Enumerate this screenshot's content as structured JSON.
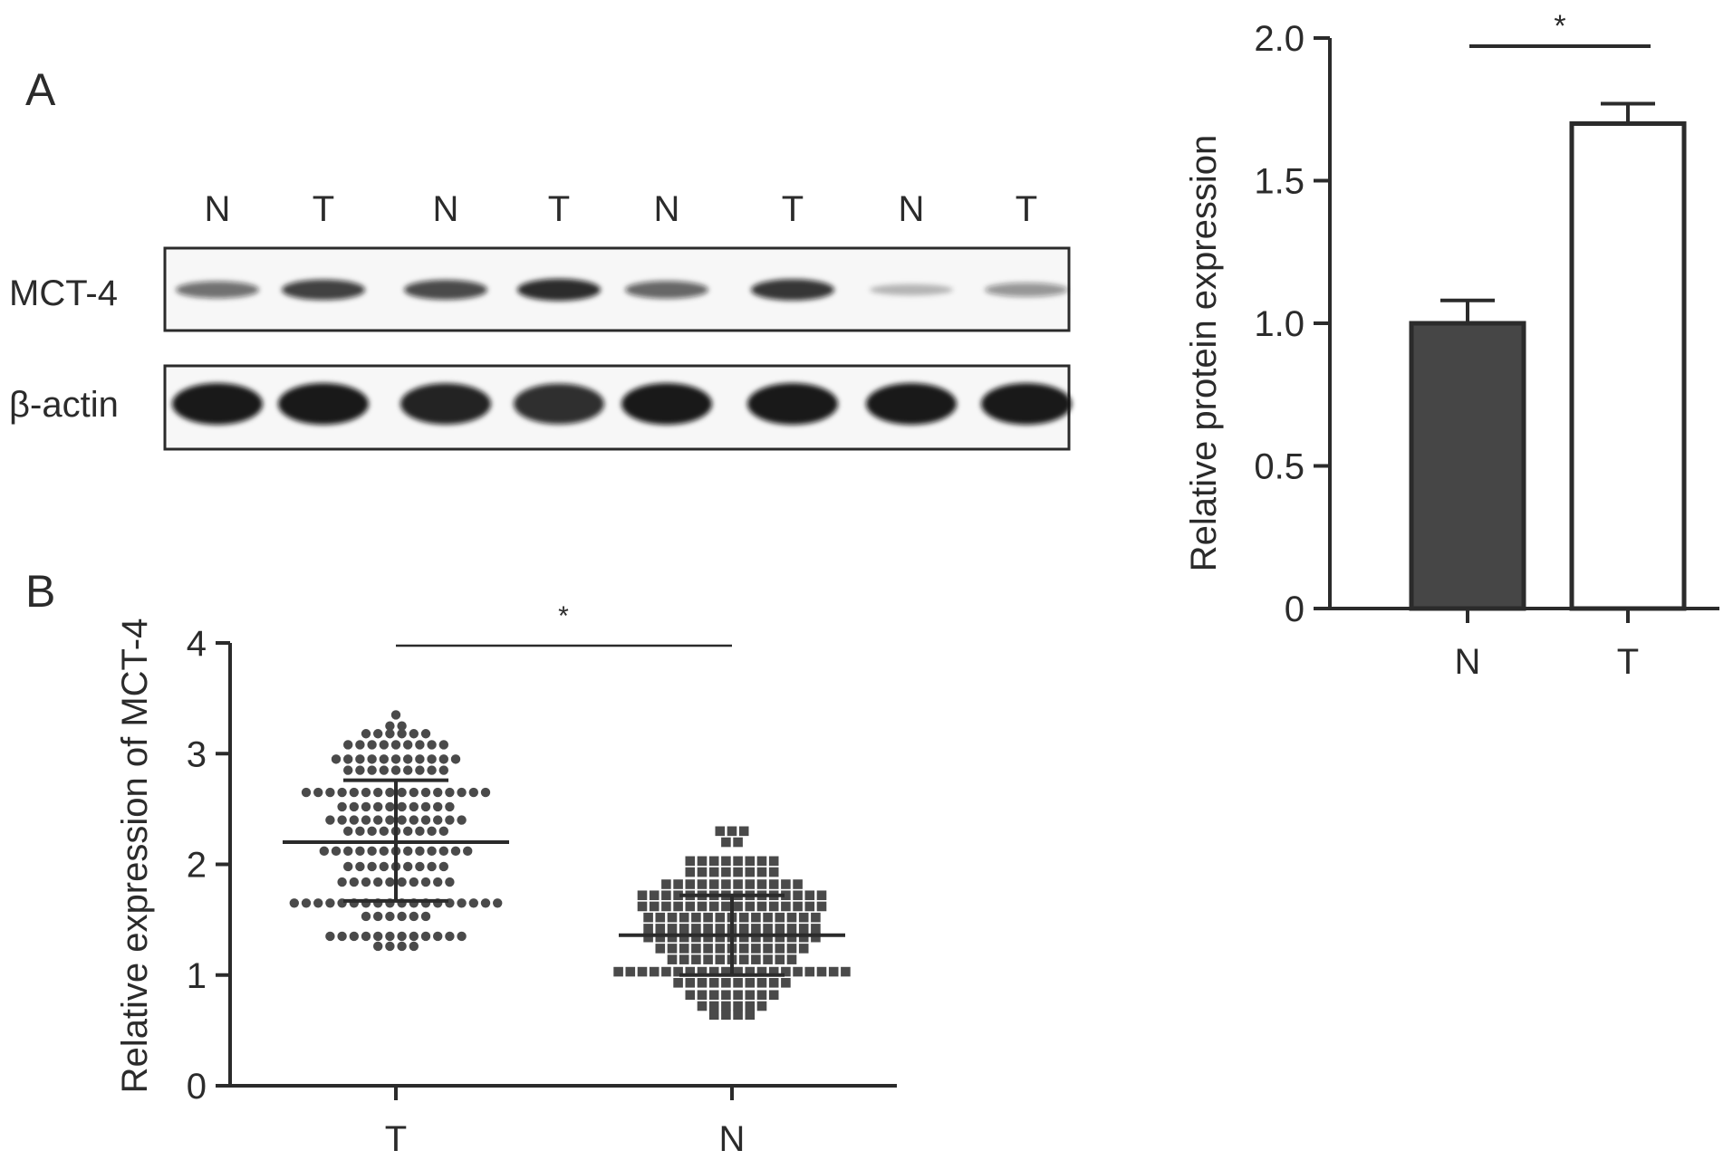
{
  "panel_labels": {
    "a": "A",
    "b": "B"
  },
  "colors": {
    "ink": "#2b2b2b",
    "bar_n": "#464646",
    "bar_t": "#ffffff",
    "band": "#111111"
  },
  "western_blot": {
    "lanes": [
      "N",
      "T",
      "N",
      "T",
      "N",
      "T",
      "N",
      "T"
    ],
    "rows": [
      {
        "label": "MCT-4",
        "band_intensity": [
          0.55,
          0.8,
          0.75,
          0.9,
          0.6,
          0.85,
          0.15,
          0.35
        ]
      },
      {
        "label": "β-actin",
        "band_intensity": [
          1,
          1,
          0.95,
          0.9,
          1,
          1,
          1,
          1
        ]
      }
    ]
  },
  "chart_data": [
    {
      "type": "bar",
      "panel": "A",
      "categories": [
        "N",
        "T"
      ],
      "values": [
        1.0,
        1.7
      ],
      "error": [
        0.08,
        0.07
      ],
      "ylabel": "Relative protein expression",
      "ylim": [
        0,
        2.0
      ],
      "yticks": [
        0,
        0.5,
        1.0,
        1.5,
        2.0
      ],
      "ytick_labels": [
        "0",
        "0.5",
        "1.0",
        "1.5",
        "2.0"
      ],
      "significance": "*",
      "grid": false
    },
    {
      "type": "scatter",
      "panel": "B",
      "categories": [
        "T",
        "N"
      ],
      "ylabel": "Relative expression of MCT-4",
      "ylim": [
        0,
        4
      ],
      "yticks": [
        0,
        1,
        2,
        3,
        4
      ],
      "ytick_labels": [
        "0",
        "1",
        "2",
        "3",
        "4"
      ],
      "significance": "*",
      "grid": false,
      "series": [
        {
          "category": "T",
          "marker": "circle",
          "mean": 2.2,
          "sd_low": 1.67,
          "sd_high": 2.76,
          "rows": [
            {
              "y": 3.35,
              "n": 1
            },
            {
              "y": 3.25,
              "n": 2
            },
            {
              "y": 3.18,
              "n": 6
            },
            {
              "y": 3.08,
              "n": 9
            },
            {
              "y": 2.95,
              "n": 11
            },
            {
              "y": 2.85,
              "n": 9
            },
            {
              "y": 2.65,
              "n": 16
            },
            {
              "y": 2.52,
              "n": 10
            },
            {
              "y": 2.4,
              "n": 12
            },
            {
              "y": 2.3,
              "n": 9
            },
            {
              "y": 2.12,
              "n": 13
            },
            {
              "y": 1.98,
              "n": 9
            },
            {
              "y": 1.84,
              "n": 10
            },
            {
              "y": 1.65,
              "n": 18
            },
            {
              "y": 1.53,
              "n": 6
            },
            {
              "y": 1.35,
              "n": 12
            },
            {
              "y": 1.26,
              "n": 4
            }
          ]
        },
        {
          "category": "N",
          "marker": "square",
          "mean": 1.36,
          "sd_low": 1.0,
          "sd_high": 1.72,
          "rows": [
            {
              "y": 2.3,
              "n": 3
            },
            {
              "y": 2.2,
              "n": 2
            },
            {
              "y": 2.03,
              "n": 8
            },
            {
              "y": 1.93,
              "n": 8
            },
            {
              "y": 1.82,
              "n": 12
            },
            {
              "y": 1.72,
              "n": 16
            },
            {
              "y": 1.62,
              "n": 16
            },
            {
              "y": 1.52,
              "n": 15
            },
            {
              "y": 1.42,
              "n": 15
            },
            {
              "y": 1.34,
              "n": 15
            },
            {
              "y": 1.24,
              "n": 13
            },
            {
              "y": 1.14,
              "n": 11
            },
            {
              "y": 1.03,
              "n": 20
            },
            {
              "y": 0.93,
              "n": 10
            },
            {
              "y": 0.82,
              "n": 8
            },
            {
              "y": 0.72,
              "n": 6
            },
            {
              "y": 0.64,
              "n": 4
            }
          ]
        }
      ]
    }
  ]
}
